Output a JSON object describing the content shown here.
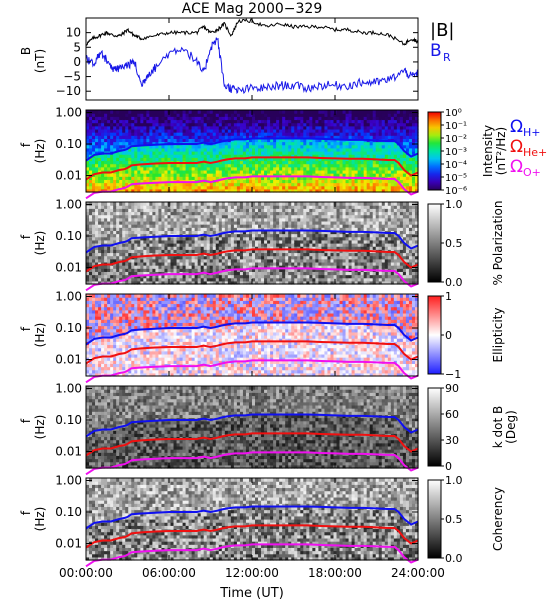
{
  "title": "ACE Mag 2000−329",
  "xlabel": "Time (UT)",
  "x_ticks": [
    "00:00:00",
    "06:00:00",
    "12:00:00",
    "18:00:00",
    "24:00:00"
  ],
  "x_range_hours": [
    0,
    24
  ],
  "colors": {
    "b_total": "#000000",
    "b_radial": "#1818e8",
    "h_plus": "#1010f0",
    "he_plus": "#f01010",
    "o_plus": "#f010f0"
  },
  "chart_data": [
    {
      "panel": "magnetic-field",
      "type": "line",
      "ylabel_1": "B",
      "ylabel_2": "(nT)",
      "ylim": [
        -13,
        15
      ],
      "y_ticks": [
        "10",
        "5",
        "0",
        "−5",
        "−10"
      ],
      "y_tick_values": [
        10,
        5,
        0,
        -5,
        -10
      ],
      "legend": {
        "b_total": "|B|",
        "b_radial": "B",
        "b_radial_sub": "R"
      },
      "series": [
        {
          "name": "|B|",
          "color_key": "b_total",
          "points": [
            [
              0,
              6
            ],
            [
              0.5,
              8
            ],
            [
              1,
              9
            ],
            [
              1.5,
              10
            ],
            [
              2,
              9
            ],
            [
              2.5,
              9
            ],
            [
              3,
              11
            ],
            [
              3.5,
              9
            ],
            [
              4,
              8
            ],
            [
              5,
              9
            ],
            [
              6,
              10
            ],
            [
              7,
              10
            ],
            [
              8,
              10
            ],
            [
              8.5,
              12
            ],
            [
              9,
              10
            ],
            [
              9.5,
              11
            ],
            [
              10,
              13
            ],
            [
              10.5,
              9
            ],
            [
              11,
              14
            ],
            [
              12,
              14
            ],
            [
              13,
              12
            ],
            [
              14,
              13
            ],
            [
              15,
              12
            ],
            [
              16,
              12
            ],
            [
              17,
              12
            ],
            [
              18,
              11
            ],
            [
              19,
              11
            ],
            [
              20,
              10
            ],
            [
              21,
              10
            ],
            [
              22,
              9
            ],
            [
              23,
              6
            ],
            [
              23.5,
              8
            ],
            [
              24,
              7
            ]
          ]
        },
        {
          "name": "B_R",
          "color_key": "b_radial",
          "points": [
            [
              0,
              2
            ],
            [
              0.5,
              -1
            ],
            [
              1,
              3
            ],
            [
              1.5,
              1
            ],
            [
              2,
              -3
            ],
            [
              2.5,
              -2
            ],
            [
              3,
              -1
            ],
            [
              3.5,
              0
            ],
            [
              4,
              -8
            ],
            [
              4.5,
              -4
            ],
            [
              5,
              -2
            ],
            [
              6,
              3
            ],
            [
              7,
              5
            ],
            [
              8,
              0
            ],
            [
              8.5,
              -4
            ],
            [
              9,
              5
            ],
            [
              9.5,
              8
            ],
            [
              10,
              -8
            ],
            [
              10.5,
              -9
            ],
            [
              11,
              -10
            ],
            [
              12,
              -9
            ],
            [
              13,
              -9
            ],
            [
              14,
              -8
            ],
            [
              15,
              -8
            ],
            [
              16,
              -9
            ],
            [
              17,
              -8
            ],
            [
              18,
              -8
            ],
            [
              19,
              -8
            ],
            [
              20,
              -7
            ],
            [
              21,
              -7
            ],
            [
              22,
              -6
            ],
            [
              23,
              -3
            ],
            [
              23.5,
              -5
            ],
            [
              24,
              -4
            ]
          ]
        }
      ]
    },
    {
      "panel": "intensity",
      "type": "heatmap",
      "ylabel_1": "f",
      "ylabel_2": "(Hz)",
      "y_scale": "log",
      "ylim": [
        0.003,
        1.2
      ],
      "y_ticks": [
        "1.00",
        "0.10",
        "0.01"
      ],
      "y_tick_values": [
        1,
        0.1,
        0.01
      ],
      "colorbar_title_1": "Intensity",
      "colorbar_title_2": "(nT²/Hz)",
      "colorbar_labels": [
        "10⁰",
        "10⁻¹",
        "10⁻²",
        "10⁻³",
        "10⁻⁴",
        "10⁻⁵",
        "10⁻⁶"
      ],
      "colorbar_range_log": [
        -6.5,
        0.5
      ],
      "colormap": "rainbow",
      "legend": {
        "h_plus": "Ω",
        "h_plus_sub": "H+",
        "he_plus": "Ω",
        "he_plus_sub": "He+",
        "o_plus": "Ω",
        "o_plus_sub": "O+"
      }
    },
    {
      "panel": "polarization",
      "type": "heatmap",
      "ylabel_1": "f",
      "ylabel_2": "(Hz)",
      "y_scale": "log",
      "ylim": [
        0.003,
        1.2
      ],
      "y_ticks": [
        "1.00",
        "0.10",
        "0.01"
      ],
      "y_tick_values": [
        1,
        0.1,
        0.01
      ],
      "colorbar_title_1": "% Polarization",
      "colorbar_labels": [
        "1.0",
        "0.5",
        "0.0"
      ],
      "colorbar_range": [
        0,
        1
      ],
      "colormap": "gray"
    },
    {
      "panel": "ellipticity",
      "type": "heatmap",
      "ylabel_1": "f",
      "ylabel_2": "(Hz)",
      "y_scale": "log",
      "ylim": [
        0.003,
        1.2
      ],
      "y_ticks": [
        "1.00",
        "0.10",
        "0.01"
      ],
      "y_tick_values": [
        1,
        0.1,
        0.01
      ],
      "colorbar_title_1": "Ellipticity",
      "colorbar_labels": [
        "1",
        "0",
        "−1"
      ],
      "colorbar_range": [
        -1,
        1
      ],
      "colormap": "bwr"
    },
    {
      "panel": "k-dot-b",
      "type": "heatmap",
      "ylabel_1": "f",
      "ylabel_2": "(Hz)",
      "y_scale": "log",
      "ylim": [
        0.003,
        1.2
      ],
      "y_ticks": [
        "1.00",
        "0.10",
        "0.01"
      ],
      "y_tick_values": [
        1,
        0.1,
        0.01
      ],
      "colorbar_title_1": "k dot B",
      "colorbar_title_2": "(Deg)",
      "colorbar_labels": [
        "90",
        "60",
        "30",
        "0"
      ],
      "colorbar_range": [
        0,
        90
      ],
      "colormap": "gray"
    },
    {
      "panel": "coherency",
      "type": "heatmap",
      "ylabel_1": "f",
      "ylabel_2": "(Hz)",
      "y_scale": "log",
      "ylim": [
        0.003,
        1.2
      ],
      "y_ticks": [
        "1.00",
        "0.10",
        "0.01"
      ],
      "y_tick_values": [
        1,
        0.1,
        0.01
      ],
      "colorbar_title_1": "Coherency",
      "colorbar_labels": [
        "1.0",
        "0.5",
        "0.0"
      ],
      "colorbar_range": [
        0,
        1
      ],
      "colormap": "gray"
    }
  ],
  "gyrofrequency_lines": {
    "x_hours": [
      0,
      0.6,
      1.2,
      1.8,
      2.4,
      2.8,
      3.0,
      3.3,
      4,
      5,
      6,
      7,
      8,
      8.5,
      9,
      9.5,
      9.8,
      10.2,
      10.8,
      11.5,
      12,
      13,
      14,
      15,
      16,
      17,
      18,
      19,
      20,
      21,
      21.8,
      22.3,
      22.6,
      23,
      23.5,
      24
    ],
    "h_plus_hz": [
      0.03,
      0.045,
      0.05,
      0.05,
      0.06,
      0.065,
      0.07,
      0.085,
      0.09,
      0.095,
      0.1,
      0.1,
      0.1,
      0.11,
      0.1,
      0.11,
      0.12,
      0.13,
      0.14,
      0.14,
      0.15,
      0.15,
      0.15,
      0.15,
      0.15,
      0.145,
      0.14,
      0.135,
      0.135,
      0.13,
      0.125,
      0.125,
      0.1,
      0.06,
      0.04,
      0.05
    ],
    "he_plus_hz": [
      0.0075,
      0.011,
      0.0125,
      0.0125,
      0.015,
      0.016,
      0.0175,
      0.021,
      0.0225,
      0.024,
      0.025,
      0.025,
      0.025,
      0.0275,
      0.025,
      0.0275,
      0.03,
      0.0325,
      0.035,
      0.035,
      0.0375,
      0.0375,
      0.0375,
      0.0375,
      0.0375,
      0.036,
      0.035,
      0.034,
      0.034,
      0.0325,
      0.031,
      0.031,
      0.025,
      0.015,
      0.01,
      0.0125
    ],
    "o_plus_hz": [
      0.0019,
      0.0028,
      0.0031,
      0.0031,
      0.0037,
      0.004,
      0.0044,
      0.0053,
      0.0056,
      0.0059,
      0.0062,
      0.0062,
      0.0062,
      0.0069,
      0.0062,
      0.0069,
      0.0075,
      0.0081,
      0.0087,
      0.0087,
      0.0094,
      0.0094,
      0.0094,
      0.0094,
      0.0094,
      0.009,
      0.0087,
      0.0084,
      0.0084,
      0.0081,
      0.0078,
      0.0078,
      0.0062,
      0.0037,
      0.0025,
      0.0031
    ]
  }
}
